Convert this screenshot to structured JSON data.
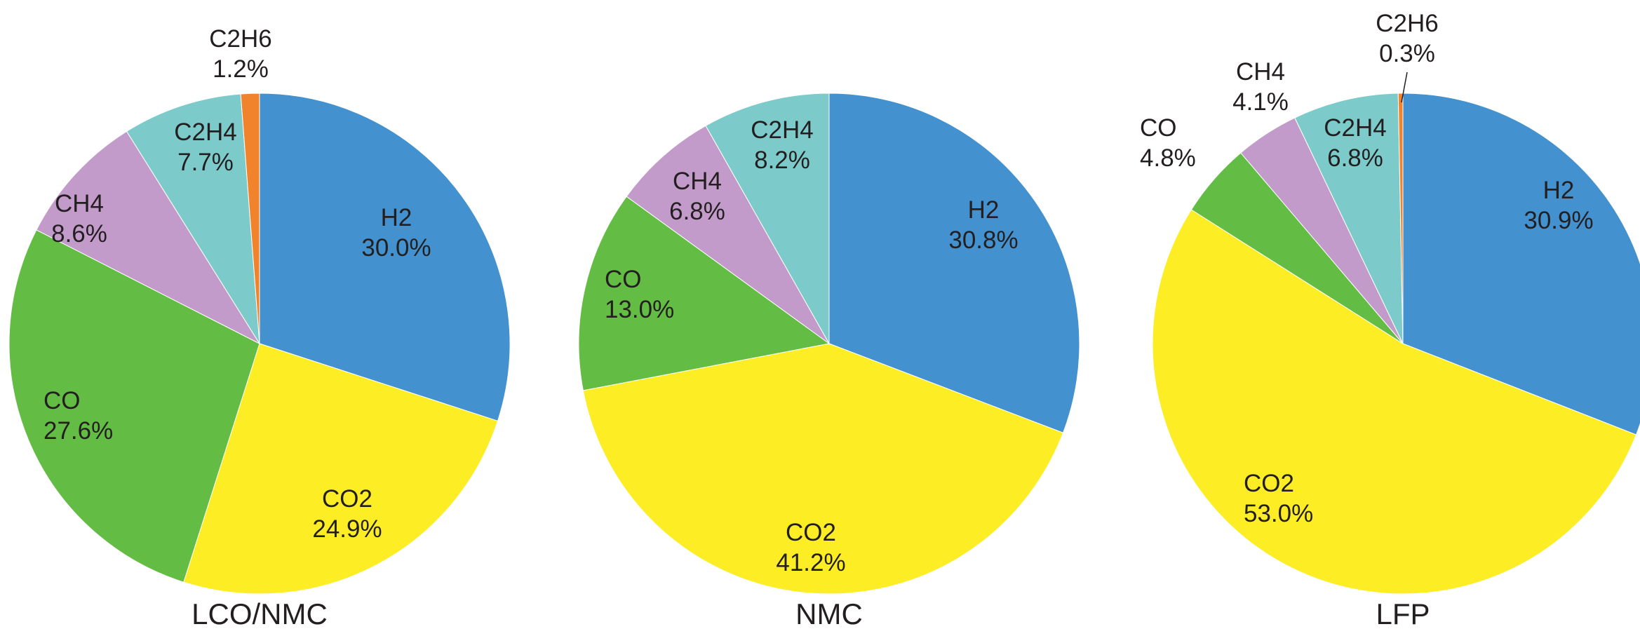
{
  "chart_data": [
    {
      "type": "pie",
      "title": "LCO/NMC",
      "slices": [
        {
          "name": "H2",
          "value": 30.0,
          "pct_label": "30.0%",
          "color": "#4391ce"
        },
        {
          "name": "CO2",
          "value": 24.9,
          "pct_label": "24.9%",
          "color": "#fced24"
        },
        {
          "name": "CO",
          "value": 27.6,
          "pct_label": "27.6%",
          "color": "#63bd45"
        },
        {
          "name": "CH4",
          "value": 8.6,
          "pct_label": "8.6%",
          "color": "#c39bca"
        },
        {
          "name": "C2H4",
          "value": 7.7,
          "pct_label": "7.7%",
          "color": "#7ccbca"
        },
        {
          "name": "C2H6",
          "value": 1.2,
          "pct_label": "1.2%",
          "color": "#f0832c"
        }
      ]
    },
    {
      "type": "pie",
      "title": "NMC",
      "slices": [
        {
          "name": "H2",
          "value": 30.8,
          "pct_label": "30.8%",
          "color": "#4391ce"
        },
        {
          "name": "CO2",
          "value": 41.2,
          "pct_label": "41.2%",
          "color": "#fced24"
        },
        {
          "name": "CO",
          "value": 13.0,
          "pct_label": "13.0%",
          "color": "#63bd45"
        },
        {
          "name": "CH4",
          "value": 6.8,
          "pct_label": "6.8%",
          "color": "#c39bca"
        },
        {
          "name": "C2H4",
          "value": 8.2,
          "pct_label": "8.2%",
          "color": "#7ccbca"
        }
      ]
    },
    {
      "type": "pie",
      "title": "LFP",
      "slices": [
        {
          "name": "H2",
          "value": 30.9,
          "pct_label": "30.9%",
          "color": "#4391ce"
        },
        {
          "name": "CO2",
          "value": 53.0,
          "pct_label": "53.0%",
          "color": "#fced24"
        },
        {
          "name": "CO",
          "value": 4.8,
          "pct_label": "4.8%",
          "color": "#63bd45"
        },
        {
          "name": "CH4",
          "value": 4.1,
          "pct_label": "4.1%",
          "color": "#c39bca"
        },
        {
          "name": "C2H4",
          "value": 6.8,
          "pct_label": "6.8%",
          "color": "#7ccbca"
        },
        {
          "name": "C2H6",
          "value": 0.3,
          "pct_label": "0.3%",
          "color": "#f0832c"
        }
      ]
    }
  ]
}
